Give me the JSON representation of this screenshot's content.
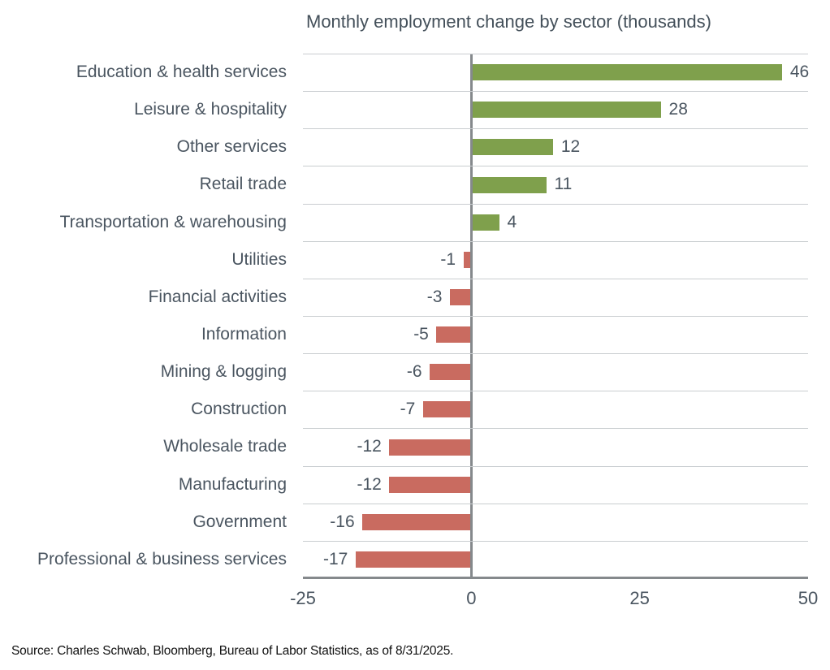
{
  "title": "Monthly employment change by sector (thousands)",
  "source": "Source: Charles Schwab, Bloomberg, Bureau of Labor Statistics, as of 8/31/2025.",
  "chart_data": {
    "type": "bar",
    "orientation": "horizontal",
    "title": "Monthly employment change by sector (thousands)",
    "categories": [
      "Education & health services",
      "Leisure & hospitality",
      "Other services",
      "Retail trade",
      "Transportation & warehousing",
      "Utilities",
      "Financial activities",
      "Information",
      "Mining & logging",
      "Construction",
      "Wholesale trade",
      "Manufacturing",
      "Government",
      "Professional & business services"
    ],
    "values": [
      46,
      28,
      12,
      11,
      4,
      -1,
      -3,
      -5,
      -6,
      -7,
      -12,
      -12,
      -16,
      -17
    ],
    "value_labels": [
      "46",
      "28",
      "12",
      "11",
      "4",
      "-1",
      "-3",
      "-5",
      "-6",
      "-7",
      "-12",
      "-12",
      "-16",
      "-17"
    ],
    "xlim": [
      -25,
      50
    ],
    "xticks": [
      -25,
      0,
      25,
      50
    ],
    "xtick_labels": [
      "-25",
      "0",
      "25",
      "50"
    ],
    "grid": true,
    "legend": "none",
    "positive_color": "#7fa04c",
    "negative_color": "#c96b60",
    "axis_color": "#85898c",
    "gridline_color": "#c9cdd0",
    "text_color": "#4a5560"
  }
}
